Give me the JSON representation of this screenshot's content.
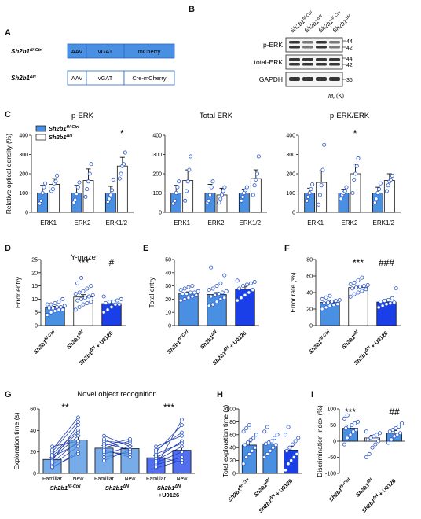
{
  "panels": {
    "A": "A",
    "B": "B",
    "C": "C",
    "D": "D",
    "E": "E",
    "F": "F",
    "G": "G",
    "H": "H",
    "I": "I"
  },
  "constructs": [
    {
      "label": "Sh2b1fl/-Ctrl",
      "base": "Sh2b1",
      "sup": "fl/-Ctrl",
      "boxes": [
        "AAV",
        "vGAT",
        "mCherry"
      ],
      "fill": "#4a90e2"
    },
    {
      "label": "Sh2b1ΔN",
      "base": "Sh2b1",
      "sup": "ΔN",
      "boxes": [
        "AAV",
        "vGAT",
        "Cre-mCherry"
      ],
      "fill": "#ffffff"
    }
  ],
  "blot": {
    "lanes": [
      "Sh2b1fl/-Ctrl",
      "Sh2b1ΔN",
      "Sh2b1fl/-Ctrl",
      "Sh2b1ΔN"
    ],
    "lane_base": "Sh2b1",
    "lane_sups": [
      "fl/-Ctrl",
      "ΔN",
      "fl/-Ctrl",
      "ΔN"
    ],
    "rows": [
      {
        "name": "p-ERK",
        "markers": [
          "44",
          "42"
        ]
      },
      {
        "name": "total-ERK",
        "markers": [
          "44",
          "42"
        ]
      },
      {
        "name": "GAPDH",
        "markers": [
          "36"
        ]
      }
    ],
    "mr_label": "Mr (K)"
  },
  "colors": {
    "ctrl": "#4a90e2",
    "dn": "#ffffff",
    "u0126": "#1a3ee8",
    "dot_ctrl": "#ffffff",
    "dot_other": "#3a62e0"
  },
  "chart_data": [
    {
      "id": "C1",
      "type": "bar",
      "title": "p-ERK",
      "ylabel": "Relative optical density (%)",
      "categories": [
        "ERK1",
        "ERK2",
        "ERK1/2"
      ],
      "ylim": [
        0,
        400
      ],
      "yticks": [
        0,
        100,
        200,
        300,
        400
      ],
      "legend": [
        "Sh2b1fl/-Ctrl",
        "Sh2b1ΔN"
      ],
      "legend_base": "Sh2b1",
      "legend_sups": [
        "fl/-Ctrl",
        "ΔN"
      ],
      "series": [
        {
          "name": "Sh2b1fl/-Ctrl",
          "values": [
            100,
            100,
            100
          ],
          "errors": [
            40,
            40,
            35
          ]
        },
        {
          "name": "Sh2b1ΔN",
          "values": [
            145,
            165,
            240
          ],
          "errors": [
            30,
            60,
            45
          ]
        }
      ],
      "points": [
        [
          [
            45,
            60,
            100,
            130,
            150
          ],
          [
            110,
            120,
            150,
            160,
            190
          ]
        ],
        [
          [
            50,
            65,
            95,
            130,
            155
          ],
          [
            80,
            120,
            160,
            200,
            250
          ]
        ],
        [
          [
            55,
            70,
            90,
            115,
            170
          ],
          [
            175,
            200,
            240,
            250,
            310
          ]
        ]
      ],
      "annotations": [
        {
          "category": 2,
          "text": "*"
        }
      ]
    },
    {
      "id": "C2",
      "type": "bar",
      "title": "Total ERK",
      "categories": [
        "ERK1",
        "ERK2",
        "ERK1/2"
      ],
      "ylim": [
        0,
        400
      ],
      "yticks": [
        0,
        100,
        200,
        300,
        400
      ],
      "series": [
        {
          "name": "Sh2b1fl/-Ctrl",
          "values": [
            100,
            100,
            100
          ],
          "errors": [
            40,
            45,
            20
          ]
        },
        {
          "name": "Sh2b1ΔN",
          "values": [
            165,
            90,
            175
          ],
          "errors": [
            55,
            35,
            45
          ]
        }
      ],
      "points": [
        [
          [
            45,
            60,
            100,
            130,
            160
          ],
          [
            60,
            110,
            160,
            220,
            290
          ]
        ],
        [
          [
            50,
            60,
            90,
            130,
            160
          ],
          [
            50,
            70,
            90,
            110,
            130
          ]
        ],
        [
          [
            60,
            80,
            100,
            115,
            130
          ],
          [
            90,
            140,
            170,
            200,
            290
          ]
        ]
      ],
      "annotations": []
    },
    {
      "id": "C3",
      "type": "bar",
      "title": "p-ERK/ERK",
      "categories": [
        "ERK1",
        "ERK2",
        "ERK1/2"
      ],
      "ylim": [
        0,
        400
      ],
      "yticks": [
        0,
        100,
        200,
        300,
        400
      ],
      "series": [
        {
          "name": "Sh2b1fl/-Ctrl",
          "values": [
            100,
            100,
            100
          ],
          "errors": [
            25,
            20,
            30
          ]
        },
        {
          "name": "Sh2b1ΔN",
          "values": [
            155,
            200,
            165
          ],
          "errors": [
            60,
            50,
            35
          ]
        }
      ],
      "points": [
        [
          [
            60,
            80,
            100,
            120,
            145
          ],
          [
            40,
            90,
            140,
            220,
            350
          ]
        ],
        [
          [
            70,
            90,
            100,
            110,
            130
          ],
          [
            100,
            170,
            200,
            240,
            280
          ]
        ],
        [
          [
            50,
            70,
            100,
            120,
            150
          ],
          [
            110,
            140,
            160,
            170,
            190
          ]
        ]
      ],
      "annotations": [
        {
          "category": 1,
          "text": "*"
        }
      ]
    },
    {
      "id": "D",
      "type": "bar",
      "title": "Y-maze",
      "ylabel": "Error entry",
      "categories": [
        "Sh2b1fl/-Ctrl",
        "Sh2b1ΔN",
        "Sh2b1ΔN + U0126"
      ],
      "cat_base": "Sh2b1",
      "cat_sups": [
        "fl/-Ctrl",
        "ΔN",
        "ΔN"
      ],
      "cat_suffix": [
        "",
        "",
        "+ U0126"
      ],
      "ylim": [
        0,
        25
      ],
      "yticks": [
        0,
        5,
        10,
        15,
        20,
        25
      ],
      "values": [
        6.8,
        10.8,
        8.3
      ],
      "errors": [
        0.5,
        0.9,
        0.6
      ],
      "points": [
        [
          4,
          5,
          5.5,
          6,
          6,
          6.5,
          6.5,
          7,
          7,
          7.5,
          8,
          8,
          8.5,
          9,
          10
        ],
        [
          6,
          7,
          8,
          8.5,
          9,
          9.5,
          10,
          10.5,
          11,
          11.5,
          12,
          12.5,
          13,
          14,
          15,
          16,
          18
        ],
        [
          5,
          6,
          7,
          8,
          8,
          8.5,
          9,
          9,
          9.5,
          10,
          11
        ]
      ],
      "annotations": [
        {
          "category": 1,
          "text": "***"
        },
        {
          "category": 2,
          "text": "#"
        }
      ]
    },
    {
      "id": "E",
      "type": "bar",
      "ylabel": "Total entry",
      "categories": [
        "Sh2b1fl/-Ctrl",
        "Sh2b1ΔN",
        "Sh2b1ΔN + U0126"
      ],
      "cat_base": "Sh2b1",
      "cat_sups": [
        "fl/-Ctrl",
        "ΔN",
        "ΔN"
      ],
      "cat_suffix": [
        "",
        "",
        "+ U0126"
      ],
      "ylim": [
        0,
        50
      ],
      "yticks": [
        0,
        10,
        20,
        30,
        40,
        50
      ],
      "values": [
        24.5,
        23.5,
        27.5
      ],
      "errors": [
        1.0,
        1.5,
        1.8
      ],
      "points": [
        [
          19,
          20,
          21,
          22,
          23,
          24,
          24,
          25,
          25,
          26,
          27,
          28,
          29,
          30
        ],
        [
          15,
          16,
          18,
          20,
          21,
          22,
          23,
          24,
          25,
          26,
          27,
          28,
          30,
          32,
          38,
          44
        ],
        [
          19,
          21,
          23,
          25,
          27,
          28,
          30,
          31,
          32,
          33,
          34
        ]
      ],
      "annotations": []
    },
    {
      "id": "F",
      "type": "bar",
      "ylabel": "Error rate (%)",
      "categories": [
        "Sh2b1fl/-Ctrl",
        "Sh2b1ΔN",
        "Sh2b1ΔN + U0126"
      ],
      "cat_base": "Sh2b1",
      "cat_sups": [
        "fl/-Ctrl",
        "ΔN",
        "ΔN"
      ],
      "cat_suffix": [
        "",
        "",
        "+ U0126"
      ],
      "ylim": [
        0,
        80
      ],
      "yticks": [
        0,
        20,
        40,
        60,
        80
      ],
      "values": [
        28,
        46,
        28.5
      ],
      "errors": [
        1.5,
        1.5,
        2.0
      ],
      "points": [
        [
          20,
          22,
          24,
          25,
          26,
          27,
          28,
          29,
          30,
          31,
          32,
          34,
          36
        ],
        [
          35,
          38,
          40,
          42,
          44,
          45,
          46,
          47,
          48,
          49,
          50,
          52,
          55,
          58
        ],
        [
          22,
          24,
          26,
          27,
          28,
          29,
          30,
          31,
          33,
          45
        ]
      ],
      "annotations": [
        {
          "category": 1,
          "text": "***"
        },
        {
          "category": 2,
          "text": "###"
        }
      ]
    },
    {
      "id": "G",
      "type": "bar",
      "title": "Novel object recognition",
      "ylabel": "Exploration time (s)",
      "categories": [
        "Familiar",
        "New",
        "Familiar",
        "New",
        "Familiar",
        "New"
      ],
      "groups": [
        "Sh2b1fl/-Ctrl",
        "Sh2b1ΔN",
        "Sh2b1ΔN +U0126"
      ],
      "group_base": "Sh2b1",
      "group_sups": [
        "fl/-Ctrl",
        "ΔN",
        "ΔN"
      ],
      "group_suffix": [
        "",
        "",
        "+U0126"
      ],
      "ylim": [
        0,
        60
      ],
      "yticks": [
        0,
        20,
        40,
        60
      ],
      "values": [
        13,
        31,
        23.5,
        23,
        14.5,
        21.5
      ],
      "errors": [
        2,
        4,
        2.5,
        2.5,
        2,
        3
      ],
      "pairs": [
        [
          [
            5,
            20
          ],
          [
            8,
            25
          ],
          [
            10,
            30
          ],
          [
            12,
            45
          ],
          [
            14,
            35
          ],
          [
            15,
            28
          ],
          [
            18,
            40
          ],
          [
            20,
            48
          ],
          [
            22,
            52
          ],
          [
            6,
            18
          ],
          [
            16,
            38
          ],
          [
            25,
            30
          ]
        ],
        [
          [
            15,
            20
          ],
          [
            18,
            25
          ],
          [
            20,
            18
          ],
          [
            24,
            30
          ],
          [
            28,
            22
          ],
          [
            30,
            28
          ],
          [
            22,
            15
          ],
          [
            35,
            25
          ],
          [
            26,
            32
          ],
          [
            12,
            22
          ],
          [
            32,
            20
          ]
        ],
        [
          [
            5,
            12
          ],
          [
            8,
            15
          ],
          [
            10,
            20
          ],
          [
            12,
            25
          ],
          [
            14,
            30
          ],
          [
            18,
            28
          ],
          [
            20,
            45
          ],
          [
            22,
            38
          ],
          [
            16,
            10
          ],
          [
            25,
            35
          ],
          [
            6,
            50
          ]
        ]
      ],
      "annotations": [
        {
          "group": 0,
          "text": "**"
        },
        {
          "group": 2,
          "text": "***"
        }
      ]
    },
    {
      "id": "H",
      "type": "bar",
      "ylabel": "Total exploration time (s)",
      "categories": [
        "Sh2b1fl/-Ctrl",
        "Sh2b1ΔN",
        "Sh2b1ΔN + U0126"
      ],
      "cat_base": "Sh2b1",
      "cat_sups": [
        "fl/-Ctrl",
        "ΔN",
        "ΔN"
      ],
      "cat_suffix": [
        "",
        "",
        "+ U0126"
      ],
      "ylim": [
        0,
        100
      ],
      "yticks": [
        0,
        20,
        40,
        60,
        80,
        100
      ],
      "values": [
        44,
        46,
        36
      ],
      "errors": [
        5,
        4,
        6
      ],
      "points": [
        [
          15,
          25,
          30,
          35,
          40,
          44,
          48,
          52,
          55,
          60,
          65,
          70,
          75
        ],
        [
          25,
          30,
          35,
          40,
          44,
          46,
          48,
          50,
          55,
          60,
          65,
          72
        ],
        [
          5,
          15,
          20,
          25,
          30,
          35,
          40,
          45,
          50,
          55,
          60,
          72
        ]
      ],
      "annotations": []
    },
    {
      "id": "I",
      "type": "bar",
      "ylabel": "Discrimination index (%)",
      "categories": [
        "Sh2b1fl/-Ctrl",
        "Sh2b1ΔN",
        "Sh2b1ΔN + U0126"
      ],
      "cat_base": "Sh2b1",
      "cat_sups": [
        "fl/-Ctrl",
        "ΔN",
        "ΔN"
      ],
      "cat_suffix": [
        "",
        "",
        "+ U0126"
      ],
      "ylim": [
        -100,
        100
      ],
      "yticks": [
        -100,
        -50,
        0,
        50,
        100
      ],
      "values": [
        40,
        10,
        25
      ],
      "errors": [
        10,
        8,
        8
      ],
      "points": [
        [
          -10,
          10,
          20,
          30,
          35,
          40,
          45,
          50,
          55,
          60,
          70,
          80
        ],
        [
          -50,
          -40,
          -20,
          -10,
          0,
          5,
          10,
          15,
          20,
          25,
          30
        ],
        [
          -5,
          5,
          15,
          20,
          25,
          30,
          35,
          40,
          45,
          55
        ]
      ],
      "annotations": [
        {
          "category": 0,
          "text": "***"
        },
        {
          "category": 2,
          "text": "##"
        }
      ]
    }
  ]
}
